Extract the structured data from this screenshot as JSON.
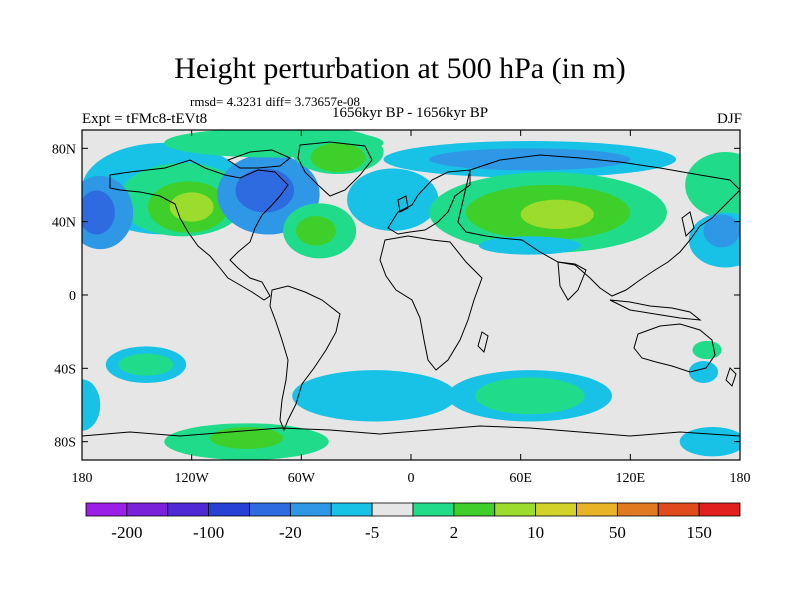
{
  "title": "Height perturbation at 500 hPa (in m)",
  "stats": "rmsd= 4.3231 diff= 3.73657e-08",
  "experiment": "Expt = tFMc8-tEVt8",
  "period": "1656kyr BP - 1656kyr BP",
  "season": "DJF",
  "axes": {
    "lat_ticks": [
      {
        "value": 80,
        "label": "80N"
      },
      {
        "value": 40,
        "label": "40N"
      },
      {
        "value": 0,
        "label": "0"
      },
      {
        "value": -40,
        "label": "40S"
      },
      {
        "value": -80,
        "label": "80S"
      }
    ],
    "lon_ticks": [
      {
        "value": -180,
        "label": "180"
      },
      {
        "value": -120,
        "label": "120W"
      },
      {
        "value": -60,
        "label": "60W"
      },
      {
        "value": 0,
        "label": "0"
      },
      {
        "value": 60,
        "label": "60E"
      },
      {
        "value": 120,
        "label": "120E"
      },
      {
        "value": 180,
        "label": "180"
      }
    ]
  },
  "colorbar": {
    "colors": [
      "#9c1fe8",
      "#7a22d9",
      "#4d2ad6",
      "#2740d6",
      "#2f6be0",
      "#2f98e6",
      "#18c2e6",
      "#e6e6e6",
      "#20dc8a",
      "#3fcf2a",
      "#9cdc2c",
      "#d2d22a",
      "#e8b326",
      "#e07a20",
      "#e04a1c",
      "#e21f1f"
    ],
    "labels": [
      "-200",
      "-100",
      "-20",
      "-5",
      "2",
      "10",
      "50",
      "150"
    ]
  },
  "field_blobs": [
    {
      "fill": "#18c2e6",
      "lon": -135,
      "lat": 58,
      "rlon": 45,
      "rlat": 25
    },
    {
      "fill": "#20dc8a",
      "lon": -125,
      "lat": 52,
      "rlon": 35,
      "rlat": 20
    },
    {
      "fill": "#3fcf2a",
      "lon": -122,
      "lat": 48,
      "rlon": 22,
      "rlat": 14
    },
    {
      "fill": "#9cdc2c",
      "lon": -120,
      "lat": 48,
      "rlon": 12,
      "rlat": 8
    },
    {
      "fill": "#2f98e6",
      "lon": -170,
      "lat": 45,
      "rlon": 18,
      "rlat": 20
    },
    {
      "fill": "#2f6be0",
      "lon": -172,
      "lat": 45,
      "rlon": 10,
      "rlat": 12
    },
    {
      "fill": "#2f98e6",
      "lon": -78,
      "lat": 55,
      "rlon": 28,
      "rlat": 22
    },
    {
      "fill": "#2f6be0",
      "lon": -80,
      "lat": 57,
      "rlon": 16,
      "rlat": 12
    },
    {
      "fill": "#20dc8a",
      "lon": -75,
      "lat": 83,
      "rlon": 60,
      "rlat": 8
    },
    {
      "fill": "#20dc8a",
      "lon": -40,
      "lat": 78,
      "rlon": 25,
      "rlat": 12
    },
    {
      "fill": "#3fcf2a",
      "lon": -40,
      "lat": 75,
      "rlon": 15,
      "rlat": 8
    },
    {
      "fill": "#18c2e6",
      "lon": -10,
      "lat": 52,
      "rlon": 25,
      "rlat": 17
    },
    {
      "fill": "#20dc8a",
      "lon": -50,
      "lat": 35,
      "rlon": 20,
      "rlat": 15
    },
    {
      "fill": "#3fcf2a",
      "lon": -52,
      "lat": 35,
      "rlon": 11,
      "rlat": 8
    },
    {
      "fill": "#18c2e6",
      "lon": 65,
      "lat": 74,
      "rlon": 80,
      "rlat": 10
    },
    {
      "fill": "#2f98e6",
      "lon": 65,
      "lat": 74,
      "rlon": 55,
      "rlat": 6
    },
    {
      "fill": "#20dc8a",
      "lon": 75,
      "lat": 45,
      "rlon": 65,
      "rlat": 22
    },
    {
      "fill": "#3fcf2a",
      "lon": 75,
      "lat": 45,
      "rlon": 45,
      "rlat": 15
    },
    {
      "fill": "#9cdc2c",
      "lon": 80,
      "lat": 44,
      "rlon": 20,
      "rlat": 8
    },
    {
      "fill": "#18c2e6",
      "lon": 65,
      "lat": 27,
      "rlon": 28,
      "rlat": 5
    },
    {
      "fill": "#20dc8a",
      "lon": 172,
      "lat": 60,
      "rlon": 22,
      "rlat": 18
    },
    {
      "fill": "#18c2e6",
      "lon": 172,
      "lat": 30,
      "rlon": 20,
      "rlat": 15
    },
    {
      "fill": "#2f98e6",
      "lon": 170,
      "lat": 35,
      "rlon": 10,
      "rlat": 9
    },
    {
      "fill": "#18c2e6",
      "lon": -145,
      "lat": -38,
      "rlon": 22,
      "rlat": 10
    },
    {
      "fill": "#20dc8a",
      "lon": -145,
      "lat": -38,
      "rlon": 15,
      "rlat": 6
    },
    {
      "fill": "#18c2e6",
      "lon": -180,
      "lat": -60,
      "rlon": 10,
      "rlat": 14
    },
    {
      "fill": "#18c2e6",
      "lon": -20,
      "lat": -55,
      "rlon": 45,
      "rlat": 14
    },
    {
      "fill": "#20dc8a",
      "lon": -90,
      "lat": -80,
      "rlon": 45,
      "rlat": 10
    },
    {
      "fill": "#3fcf2a",
      "lon": -90,
      "lat": -78,
      "rlon": 20,
      "rlat": 6
    },
    {
      "fill": "#18c2e6",
      "lon": 65,
      "lat": -55,
      "rlon": 45,
      "rlat": 14
    },
    {
      "fill": "#20dc8a",
      "lon": 65,
      "lat": -55,
      "rlon": 30,
      "rlat": 10
    },
    {
      "fill": "#18c2e6",
      "lon": 160,
      "lat": -42,
      "rlon": 8,
      "rlat": 6
    },
    {
      "fill": "#20dc8a",
      "lon": 162,
      "lat": -30,
      "rlon": 8,
      "rlat": 5
    },
    {
      "fill": "#18c2e6",
      "lon": 165,
      "lat": -80,
      "rlon": 18,
      "rlat": 8
    }
  ]
}
